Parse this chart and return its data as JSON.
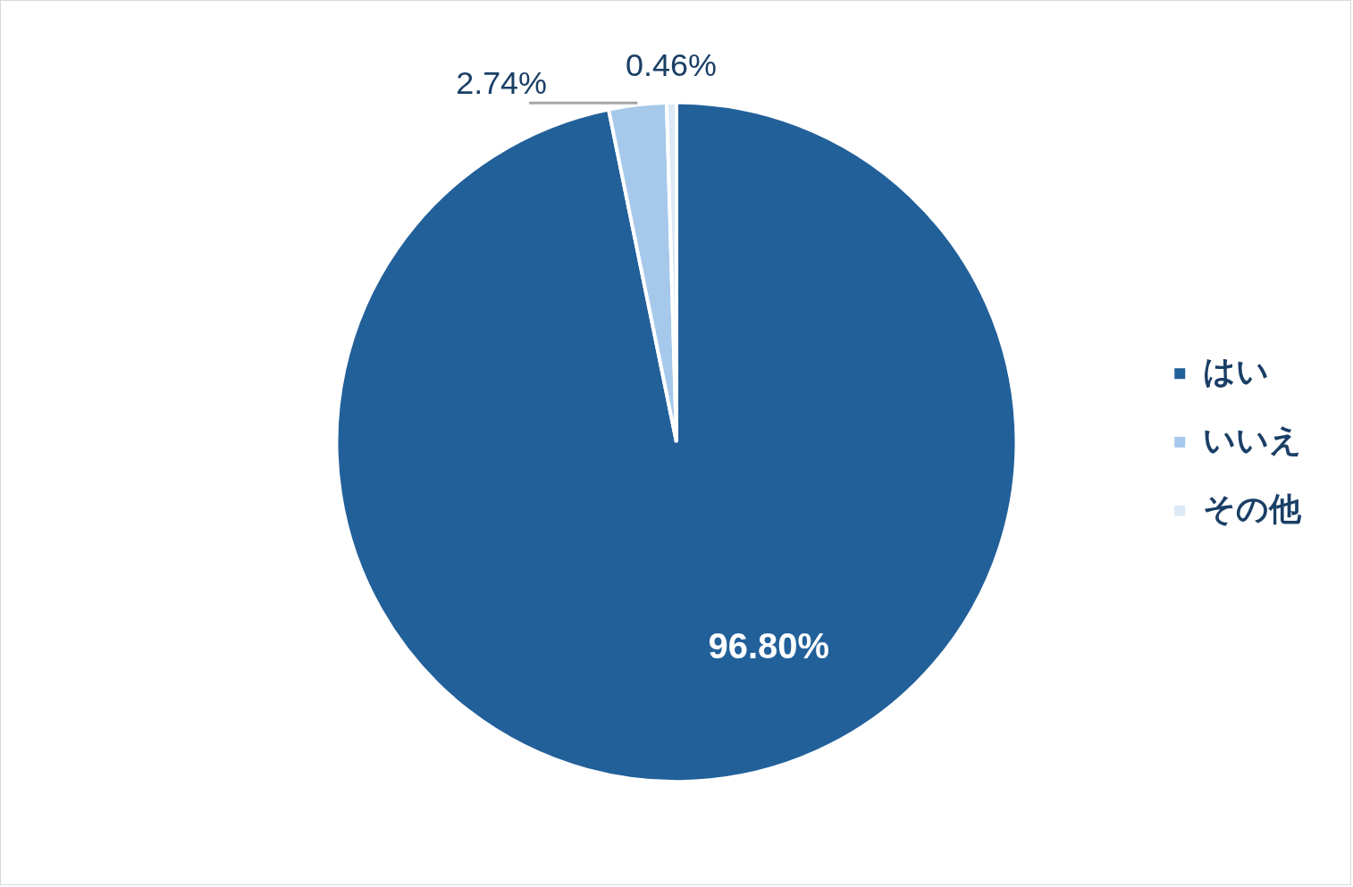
{
  "chart_data": {
    "type": "pie",
    "categories": [
      "はい",
      "いいえ",
      "その他"
    ],
    "values": [
      96.8,
      2.74,
      0.46
    ],
    "colors": [
      "#22609a",
      "#a6c9eb",
      "#dce9f6"
    ],
    "value_labels": [
      "96.80%",
      "2.74%",
      "0.46%"
    ],
    "legend": "right"
  }
}
